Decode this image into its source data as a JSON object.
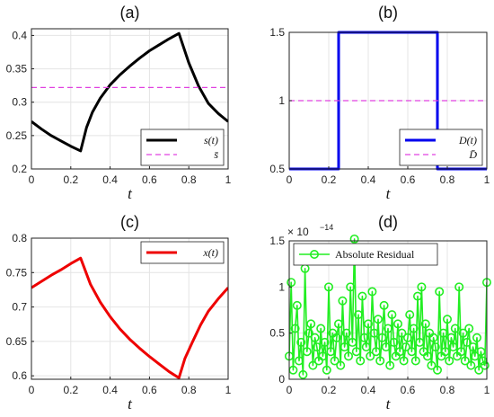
{
  "chart_data": [
    {
      "id": "a",
      "type": "line",
      "title": "(a)",
      "xlabel": "t",
      "xlim": [
        0,
        1
      ],
      "ylim": [
        0.2,
        0.41
      ],
      "xticks": [
        0,
        0.2,
        0.4,
        0.6,
        0.8,
        1
      ],
      "xtick_labels": [
        "0",
        "0.2",
        "0.4",
        "0.6",
        "0.8",
        "1"
      ],
      "yticks": [
        0.2,
        0.25,
        0.3,
        0.35,
        0.4
      ],
      "ytick_labels": [
        "0.2",
        "0.25",
        "0.3",
        "0.35",
        "0.4"
      ],
      "grid": true,
      "legend_position": "bottom-right",
      "series": [
        {
          "name": "s(t)",
          "color": "#000000",
          "style": "solid",
          "x": [
            0,
            0.05,
            0.1,
            0.15,
            0.2,
            0.25,
            0.28,
            0.31,
            0.35,
            0.4,
            0.45,
            0.5,
            0.55,
            0.6,
            0.65,
            0.7,
            0.75,
            0.8,
            0.85,
            0.9,
            0.95,
            1
          ],
          "y": [
            0.271,
            0.26,
            0.25,
            0.242,
            0.234,
            0.227,
            0.262,
            0.285,
            0.306,
            0.326,
            0.341,
            0.354,
            0.366,
            0.377,
            0.386,
            0.395,
            0.403,
            0.359,
            0.324,
            0.298,
            0.283,
            0.271
          ]
        },
        {
          "name": "s̄",
          "color": "#e040e0",
          "style": "dashed",
          "x": [
            0,
            1
          ],
          "y": [
            0.322,
            0.322
          ]
        }
      ]
    },
    {
      "id": "b",
      "type": "line",
      "title": "(b)",
      "xlabel": "t",
      "xlim": [
        0,
        1
      ],
      "ylim": [
        0.5,
        1.5
      ],
      "xticks": [
        0,
        0.2,
        0.4,
        0.6,
        0.8,
        1
      ],
      "xtick_labels": [
        "0",
        "0.2",
        "0.4",
        "0.6",
        "0.8",
        "1"
      ],
      "yticks": [
        0.5,
        1,
        1.5
      ],
      "ytick_labels": [
        "0.5",
        "1",
        "1.5"
      ],
      "grid": true,
      "legend_position": "bottom-right",
      "series": [
        {
          "name": "D(t)",
          "color": "#0000ee",
          "style": "solid",
          "x": [
            0,
            0.25,
            0.25,
            0.75,
            0.75,
            1
          ],
          "y": [
            0.5,
            0.5,
            1.5,
            1.5,
            0.5,
            0.5
          ]
        },
        {
          "name": "D̄",
          "color": "#e040e0",
          "style": "dashed",
          "x": [
            0,
            1
          ],
          "y": [
            1,
            1
          ]
        }
      ]
    },
    {
      "id": "c",
      "type": "line",
      "title": "(c)",
      "xlabel": "t",
      "xlim": [
        0,
        1
      ],
      "ylim": [
        0.595,
        0.8
      ],
      "xticks": [
        0,
        0.2,
        0.4,
        0.6,
        0.8,
        1
      ],
      "xtick_labels": [
        "0",
        "0.2",
        "0.4",
        "0.6",
        "0.8",
        "1"
      ],
      "yticks": [
        0.6,
        0.65,
        0.7,
        0.75,
        0.8
      ],
      "ytick_labels": [
        "0.6",
        "0.65",
        "0.7",
        "0.75",
        "0.8"
      ],
      "grid": true,
      "legend_position": "top-right",
      "series": [
        {
          "name": "x(t)",
          "color": "#ee0000",
          "style": "solid",
          "x": [
            0,
            0.05,
            0.1,
            0.15,
            0.2,
            0.25,
            0.3,
            0.35,
            0.4,
            0.45,
            0.5,
            0.55,
            0.6,
            0.65,
            0.7,
            0.75,
            0.78,
            0.82,
            0.86,
            0.9,
            0.95,
            1
          ],
          "y": [
            0.728,
            0.737,
            0.746,
            0.754,
            0.763,
            0.771,
            0.733,
            0.707,
            0.686,
            0.668,
            0.653,
            0.64,
            0.628,
            0.617,
            0.606,
            0.597,
            0.625,
            0.65,
            0.674,
            0.694,
            0.712,
            0.728
          ]
        }
      ]
    },
    {
      "id": "d",
      "type": "line",
      "title": "(d)",
      "xlabel": "t",
      "xlim": [
        0,
        1
      ],
      "ylim": [
        0,
        1.5
      ],
      "exponent_label": "× 10",
      "exponent_power": "−14",
      "xticks": [
        0,
        0.2,
        0.4,
        0.6,
        0.8,
        1
      ],
      "xtick_labels": [
        "0",
        "0.2",
        "0.4",
        "0.6",
        "0.8",
        "1"
      ],
      "yticks": [
        0,
        0.5,
        1,
        1.5
      ],
      "ytick_labels": [
        "0",
        "0.5",
        "1",
        "1.5"
      ],
      "grid": true,
      "legend_position": "top",
      "series": [
        {
          "name": "Absolute Residual",
          "color": "#22ee22",
          "style": "solid",
          "marker": "circle",
          "x": [
            0.0,
            0.01,
            0.02,
            0.03,
            0.04,
            0.05,
            0.06,
            0.07,
            0.08,
            0.09,
            0.1,
            0.11,
            0.12,
            0.13,
            0.14,
            0.15,
            0.16,
            0.17,
            0.18,
            0.19,
            0.2,
            0.21,
            0.22,
            0.23,
            0.24,
            0.25,
            0.26,
            0.27,
            0.28,
            0.29,
            0.3,
            0.31,
            0.32,
            0.33,
            0.34,
            0.35,
            0.36,
            0.37,
            0.38,
            0.39,
            0.4,
            0.41,
            0.42,
            0.43,
            0.44,
            0.45,
            0.46,
            0.47,
            0.48,
            0.49,
            0.5,
            0.51,
            0.52,
            0.53,
            0.54,
            0.55,
            0.56,
            0.57,
            0.58,
            0.59,
            0.6,
            0.61,
            0.62,
            0.63,
            0.64,
            0.65,
            0.66,
            0.67,
            0.68,
            0.69,
            0.7,
            0.71,
            0.72,
            0.73,
            0.74,
            0.75,
            0.76,
            0.77,
            0.78,
            0.79,
            0.8,
            0.81,
            0.82,
            0.83,
            0.84,
            0.85,
            0.86,
            0.87,
            0.88,
            0.89,
            0.9,
            0.91,
            0.92,
            0.93,
            0.94,
            0.95,
            0.96,
            0.97,
            0.98,
            0.99,
            1.0
          ],
          "y": [
            0.25,
            1.05,
            0.1,
            0.55,
            0.8,
            0.2,
            0.4,
            0.05,
            1.2,
            0.3,
            0.5,
            0.6,
            0.15,
            0.45,
            0.35,
            0.2,
            0.55,
            0.25,
            0.4,
            0.1,
            1.0,
            0.3,
            0.5,
            0.2,
            0.45,
            0.6,
            0.15,
            0.85,
            0.35,
            0.5,
            0.25,
            1.0,
            0.4,
            1.52,
            0.3,
            0.7,
            0.2,
            0.9,
            0.45,
            0.35,
            0.6,
            0.25,
            0.95,
            0.5,
            0.3,
            0.65,
            0.2,
            0.45,
            0.8,
            0.35,
            0.55,
            0.15,
            0.7,
            0.4,
            0.25,
            0.6,
            0.3,
            0.5,
            0.2,
            0.35,
            0.45,
            0.7,
            0.3,
            0.55,
            0.2,
            0.9,
            0.4,
            1.0,
            0.3,
            0.6,
            0.25,
            0.5,
            0.15,
            0.45,
            0.35,
            0.1,
            0.95,
            0.25,
            0.5,
            0.3,
            0.65,
            0.2,
            0.45,
            0.35,
            0.55,
            0.25,
            1.0,
            0.3,
            0.5,
            0.2,
            0.4,
            0.55,
            0.15,
            0.35,
            0.25,
            0.45,
            0.1,
            0.3,
            0.2,
            0.15,
            1.05
          ]
        }
      ]
    }
  ]
}
